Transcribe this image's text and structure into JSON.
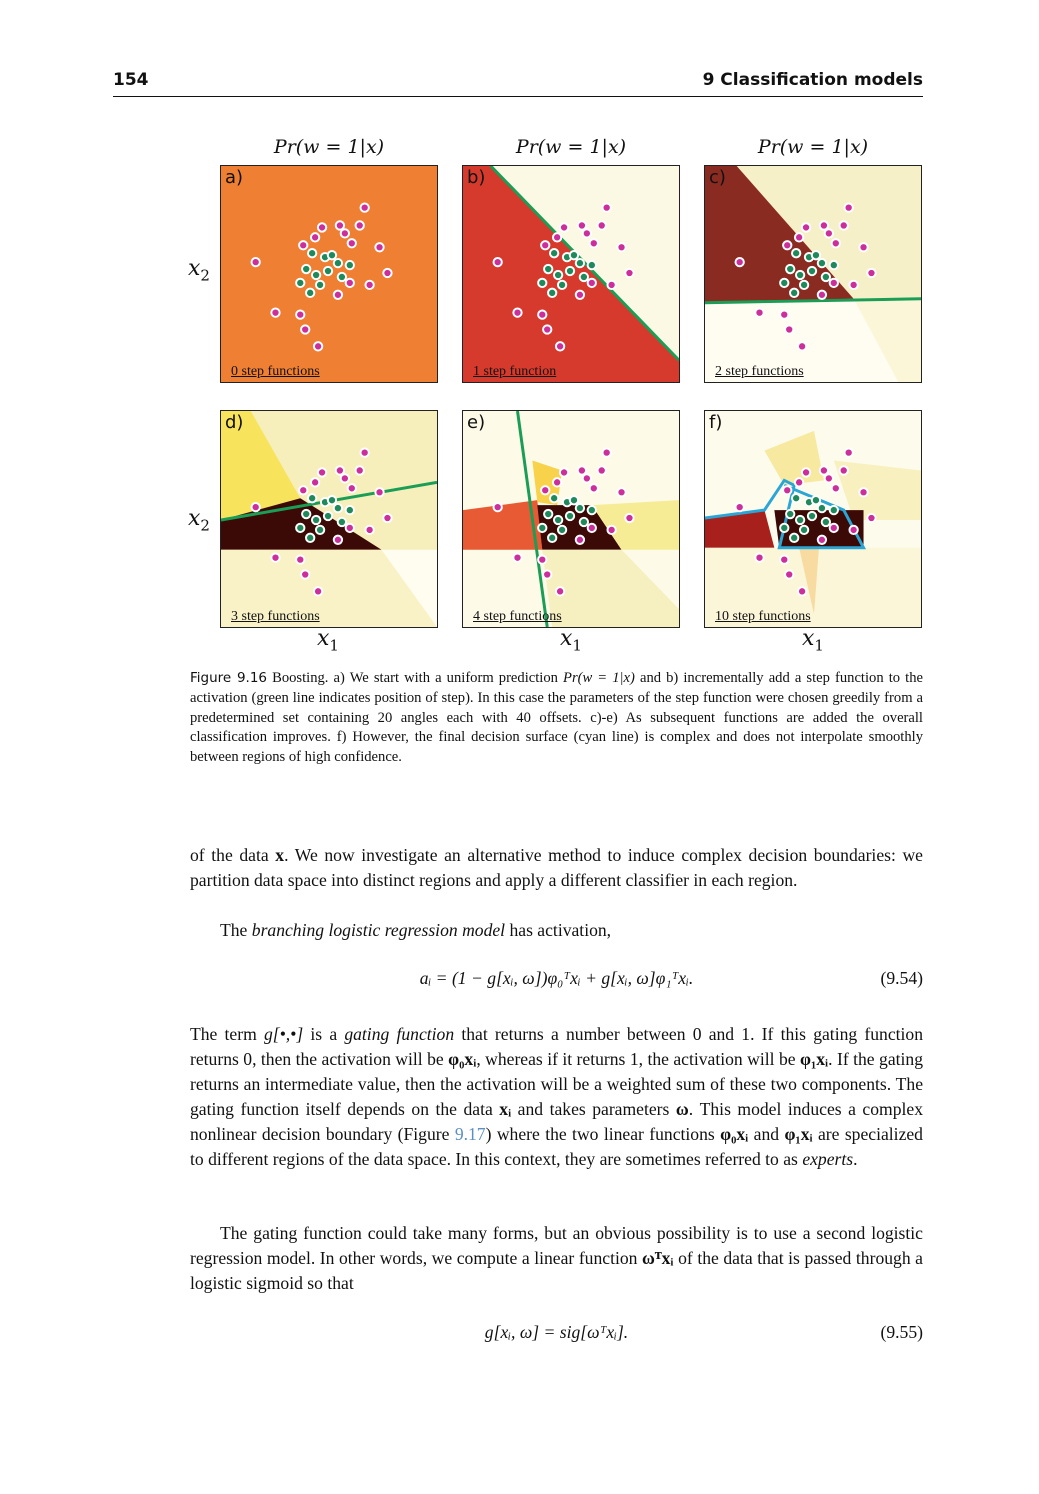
{
  "header": {
    "page_number": "154",
    "chapter_title": "9 Classification models"
  },
  "figure": {
    "column_titles": [
      "Pr(w = 1|x)",
      "Pr(w = 1|x)",
      "Pr(w = 1|x)"
    ],
    "y_axis_label": "x",
    "y_axis_sub": "2",
    "x_axis_label": "x",
    "x_axis_sub": "1",
    "panels": [
      {
        "label": "a)",
        "steps": "0 step functions"
      },
      {
        "label": "b)",
        "steps": "1 step function"
      },
      {
        "label": "c)",
        "steps": "2 step functions"
      },
      {
        "label": "d)",
        "steps": "3 step functions"
      },
      {
        "label": "e)",
        "steps": "4 step functions"
      },
      {
        "label": "f)",
        "steps": "10 step functions"
      }
    ],
    "colors": {
      "orange": "#ee7f33",
      "red": "#d63a2c",
      "cream": "#fbf8e4",
      "maroon": "#8a2b22",
      "yellow": "#f7e35c",
      "darkbrown": "#3c0a06",
      "green": "#1a9e55",
      "cyan": "#2aa6d6",
      "magenta": "#cc2f9b",
      "teal": "#1e8a5c"
    }
  },
  "caption": {
    "figure_label": "Figure 9.16",
    "text_1": " Boosting. a) We start with a uniform prediction ",
    "math_1": "Pr(w = 1|x)",
    "text_2": " and b) incrementally add a step function to the activation (green line indicates position of step). In this case the parameters of the step function were chosen greedily from a predetermined set containing 20 angles each with 40 offsets. c)-e) As subsequent functions are added the overall classification improves. f) However, the final decision surface (cyan line) is complex and does not interpolate smoothly between regions of high confidence."
  },
  "body": {
    "p1_a": "of the data ",
    "p1_x": "x",
    "p1_b": ". We now investigate an alternative method to induce complex decision boundaries: we partition data space into distinct regions and apply a different classifier in each region.",
    "p2_a": "The ",
    "p2_em": "branching logistic regression model",
    "p2_b": " has activation,",
    "eq1": "aᵢ = (1 − g[xᵢ, ω])φ₀ᵀxᵢ + g[xᵢ, ω]φ₁ᵀxᵢ.",
    "eq1_num": "(9.54)",
    "p3_a": "The term ",
    "p3_g": "g[•,•]",
    "p3_b": " is a ",
    "p3_em": "gating function",
    "p3_c": " that returns a number between 0 and 1. If this gating function returns 0, then the activation will be ",
    "p3_m1": "φ₀xᵢ",
    "p3_d": ", whereas if it returns 1, the activation will be ",
    "p3_m2": "φ₁xᵢ",
    "p3_e": ". If the gating returns an intermediate value, then the activation will be a weighted sum of these two components. The gating function itself depends on the data ",
    "p3_m3": "xᵢ",
    "p3_f": " and takes parameters ",
    "p3_m4": "ω",
    "p3_g2": ". This model induces a complex nonlinear decision boundary (Figure ",
    "p3_ref": "9.17",
    "p3_h": ") where the two linear functions ",
    "p3_m5": "φ₀xᵢ",
    "p3_i": " and ",
    "p3_m6": "φ₁xᵢ",
    "p3_j": " are specialized to different regions of the data space. In this context, they are sometimes referred to as ",
    "p3_em2": "experts",
    "p3_k": ".",
    "p4_a": "The gating function could take many forms, but an obvious possibility is to use a second logistic regression model. In other words, we compute a linear function ",
    "p4_m": "ωᵀxᵢ",
    "p4_b": " of the data that is passed through a logistic sigmoid so that",
    "eq2": "g[xᵢ, ω] = sig[ωᵀxᵢ].",
    "eq2_num": "(9.55)"
  }
}
